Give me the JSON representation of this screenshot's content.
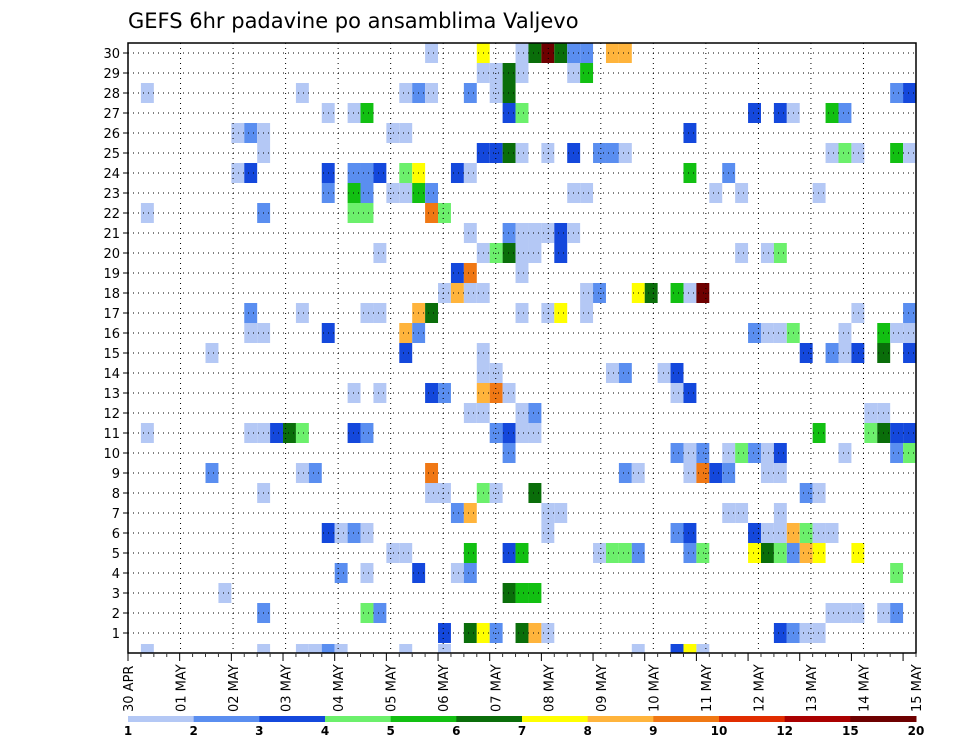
{
  "chart_data": {
    "type": "heatmap",
    "title": "GEFS 6hr padavine po ansamblima Valjevo",
    "xlabel": "",
    "ylabel": "",
    "x_tick_labels": [
      "30 APR",
      "01 MAY",
      "02 MAY",
      "03 MAY",
      "04 MAY",
      "05 MAY",
      "06 MAY",
      "07 MAY",
      "08 MAY",
      "09 MAY",
      "10 MAY",
      "11 MAY",
      "12 MAY",
      "13 MAY",
      "14 MAY",
      "15 MAY"
    ],
    "xlim_steps": [
      0,
      61
    ],
    "steps_per_day": 4,
    "members": [
      1,
      2,
      3,
      4,
      5,
      6,
      7,
      8,
      9,
      10,
      11,
      12,
      13,
      14,
      15,
      16,
      17,
      18,
      19,
      20,
      21,
      22,
      23,
      24,
      25,
      26,
      27,
      28,
      29,
      30
    ],
    "grid": true,
    "legend_placement": "bottom",
    "levels": [
      "1",
      "2",
      "3",
      "4",
      "5",
      "6",
      "7",
      "8",
      "9",
      "10",
      "12",
      "15",
      "20"
    ],
    "level_colors": [
      "#b4c8f5",
      "#5a8ef0",
      "#1448dc",
      "#6cf06c",
      "#12c012",
      "#0a6e0a",
      "#ffff00",
      "#ffb43c",
      "#f07814",
      "#e12d00",
      "#aa0000",
      "#6e0000"
    ],
    "cells": [
      [
        1,
        24,
        3
      ],
      [
        1,
        26,
        6
      ],
      [
        1,
        27,
        7
      ],
      [
        1,
        28,
        2
      ],
      [
        1,
        30,
        6
      ],
      [
        1,
        31,
        8
      ],
      [
        1,
        32,
        1
      ],
      [
        1,
        50,
        3
      ],
      [
        1,
        51,
        2
      ],
      [
        1,
        52,
        1
      ],
      [
        1,
        53,
        1
      ],
      [
        2,
        10,
        2
      ],
      [
        2,
        18,
        4
      ],
      [
        2,
        19,
        2
      ],
      [
        2,
        54,
        1
      ],
      [
        2,
        55,
        1
      ],
      [
        2,
        56,
        1
      ],
      [
        2,
        58,
        1
      ],
      [
        2,
        59,
        2
      ],
      [
        3,
        7,
        1
      ],
      [
        3,
        29,
        6
      ],
      [
        3,
        30,
        5
      ],
      [
        3,
        31,
        5
      ],
      [
        4,
        16,
        2
      ],
      [
        4,
        18,
        1
      ],
      [
        4,
        22,
        3
      ],
      [
        4,
        25,
        1
      ],
      [
        4,
        26,
        2
      ],
      [
        4,
        59,
        4
      ],
      [
        5,
        20,
        1
      ],
      [
        5,
        21,
        1
      ],
      [
        5,
        26,
        5
      ],
      [
        5,
        29,
        3
      ],
      [
        5,
        30,
        5
      ],
      [
        5,
        36,
        1
      ],
      [
        5,
        37,
        4
      ],
      [
        5,
        38,
        4
      ],
      [
        5,
        39,
        2
      ],
      [
        5,
        43,
        2
      ],
      [
        5,
        44,
        4
      ],
      [
        5,
        48,
        7
      ],
      [
        5,
        49,
        6
      ],
      [
        5,
        50,
        4
      ],
      [
        5,
        51,
        2
      ],
      [
        5,
        52,
        8
      ],
      [
        5,
        53,
        7
      ],
      [
        5,
        56,
        7
      ],
      [
        6,
        15,
        3
      ],
      [
        6,
        16,
        1
      ],
      [
        6,
        17,
        2
      ],
      [
        6,
        18,
        1
      ],
      [
        6,
        32,
        1
      ],
      [
        6,
        42,
        2
      ],
      [
        6,
        43,
        3
      ],
      [
        6,
        48,
        3
      ],
      [
        6,
        49,
        1
      ],
      [
        6,
        50,
        1
      ],
      [
        6,
        51,
        8
      ],
      [
        6,
        52,
        4
      ],
      [
        6,
        53,
        1
      ],
      [
        6,
        54,
        1
      ],
      [
        7,
        25,
        2
      ],
      [
        7,
        26,
        8
      ],
      [
        7,
        32,
        1
      ],
      [
        7,
        33,
        1
      ],
      [
        7,
        46,
        1
      ],
      [
        7,
        47,
        1
      ],
      [
        7,
        50,
        1
      ],
      [
        8,
        10,
        1
      ],
      [
        8,
        23,
        1
      ],
      [
        8,
        24,
        1
      ],
      [
        8,
        27,
        4
      ],
      [
        8,
        28,
        1
      ],
      [
        8,
        31,
        6
      ],
      [
        8,
        52,
        2
      ],
      [
        8,
        53,
        1
      ],
      [
        9,
        6,
        2
      ],
      [
        9,
        13,
        1
      ],
      [
        9,
        14,
        2
      ],
      [
        9,
        23,
        9
      ],
      [
        9,
        38,
        2
      ],
      [
        9,
        39,
        1
      ],
      [
        9,
        43,
        1
      ],
      [
        9,
        44,
        9
      ],
      [
        9,
        45,
        3
      ],
      [
        9,
        46,
        2
      ],
      [
        9,
        49,
        1
      ],
      [
        9,
        50,
        1
      ],
      [
        10,
        29,
        2
      ],
      [
        10,
        42,
        2
      ],
      [
        10,
        43,
        1
      ],
      [
        10,
        44,
        2
      ],
      [
        10,
        46,
        1
      ],
      [
        10,
        47,
        4
      ],
      [
        10,
        48,
        2
      ],
      [
        10,
        49,
        1
      ],
      [
        10,
        50,
        3
      ],
      [
        10,
        55,
        1
      ],
      [
        10,
        59,
        2
      ],
      [
        10,
        60,
        4
      ],
      [
        11,
        1,
        1
      ],
      [
        11,
        9,
        1
      ],
      [
        11,
        10,
        1
      ],
      [
        11,
        11,
        3
      ],
      [
        11,
        12,
        6
      ],
      [
        11,
        13,
        4
      ],
      [
        11,
        17,
        3
      ],
      [
        11,
        18,
        2
      ],
      [
        11,
        28,
        2
      ],
      [
        11,
        29,
        3
      ],
      [
        11,
        30,
        1
      ],
      [
        11,
        31,
        1
      ],
      [
        11,
        53,
        5
      ],
      [
        11,
        57,
        4
      ],
      [
        11,
        58,
        6
      ],
      [
        11,
        59,
        3
      ],
      [
        11,
        60,
        3
      ],
      [
        12,
        26,
        1
      ],
      [
        12,
        27,
        1
      ],
      [
        12,
        30,
        1
      ],
      [
        12,
        31,
        2
      ],
      [
        12,
        57,
        1
      ],
      [
        12,
        58,
        1
      ],
      [
        13,
        17,
        1
      ],
      [
        13,
        19,
        1
      ],
      [
        13,
        23,
        3
      ],
      [
        13,
        24,
        2
      ],
      [
        13,
        27,
        8
      ],
      [
        13,
        28,
        9
      ],
      [
        13,
        29,
        1
      ],
      [
        13,
        42,
        1
      ],
      [
        13,
        43,
        3
      ],
      [
        14,
        27,
        1
      ],
      [
        14,
        28,
        1
      ],
      [
        14,
        37,
        1
      ],
      [
        14,
        38,
        2
      ],
      [
        14,
        41,
        1
      ],
      [
        14,
        42,
        3
      ],
      [
        15,
        6,
        1
      ],
      [
        15,
        21,
        3
      ],
      [
        15,
        27,
        1
      ],
      [
        15,
        52,
        3
      ],
      [
        15,
        54,
        2
      ],
      [
        15,
        55,
        1
      ],
      [
        15,
        56,
        3
      ],
      [
        15,
        58,
        6
      ],
      [
        15,
        60,
        3
      ],
      [
        16,
        9,
        1
      ],
      [
        16,
        10,
        1
      ],
      [
        16,
        15,
        3
      ],
      [
        16,
        21,
        8
      ],
      [
        16,
        22,
        2
      ],
      [
        16,
        48,
        2
      ],
      [
        16,
        49,
        1
      ],
      [
        16,
        50,
        1
      ],
      [
        16,
        51,
        4
      ],
      [
        16,
        55,
        1
      ],
      [
        16,
        58,
        5
      ],
      [
        16,
        59,
        1
      ],
      [
        16,
        60,
        1
      ],
      [
        17,
        9,
        2
      ],
      [
        17,
        13,
        1
      ],
      [
        17,
        18,
        1
      ],
      [
        17,
        19,
        1
      ],
      [
        17,
        22,
        8
      ],
      [
        17,
        23,
        6
      ],
      [
        17,
        30,
        1
      ],
      [
        17,
        32,
        1
      ],
      [
        17,
        33,
        7
      ],
      [
        17,
        35,
        1
      ],
      [
        17,
        56,
        1
      ],
      [
        17,
        60,
        2
      ],
      [
        18,
        24,
        1
      ],
      [
        18,
        25,
        8
      ],
      [
        18,
        26,
        1
      ],
      [
        18,
        27,
        1
      ],
      [
        18,
        35,
        1
      ],
      [
        18,
        36,
        2
      ],
      [
        18,
        39,
        7
      ],
      [
        18,
        40,
        6
      ],
      [
        18,
        42,
        5
      ],
      [
        18,
        43,
        1
      ],
      [
        18,
        44,
        12
      ],
      [
        19,
        25,
        3
      ],
      [
        19,
        26,
        9
      ],
      [
        19,
        30,
        1
      ],
      [
        20,
        19,
        1
      ],
      [
        20,
        27,
        1
      ],
      [
        20,
        28,
        4
      ],
      [
        20,
        29,
        6
      ],
      [
        20,
        30,
        1
      ],
      [
        20,
        31,
        1
      ],
      [
        20,
        33,
        3
      ],
      [
        20,
        47,
        1
      ],
      [
        20,
        49,
        1
      ],
      [
        20,
        50,
        4
      ],
      [
        21,
        26,
        1
      ],
      [
        21,
        29,
        2
      ],
      [
        21,
        30,
        1
      ],
      [
        21,
        31,
        1
      ],
      [
        21,
        32,
        1
      ],
      [
        21,
        33,
        3
      ],
      [
        21,
        34,
        1
      ],
      [
        22,
        1,
        1
      ],
      [
        22,
        10,
        2
      ],
      [
        22,
        17,
        4
      ],
      [
        22,
        18,
        4
      ],
      [
        22,
        23,
        9
      ],
      [
        22,
        24,
        4
      ],
      [
        23,
        15,
        2
      ],
      [
        23,
        17,
        5
      ],
      [
        23,
        18,
        2
      ],
      [
        23,
        20,
        1
      ],
      [
        23,
        21,
        1
      ],
      [
        23,
        22,
        5
      ],
      [
        23,
        23,
        2
      ],
      [
        23,
        34,
        1
      ],
      [
        23,
        35,
        1
      ],
      [
        23,
        45,
        1
      ],
      [
        23,
        47,
        1
      ],
      [
        23,
        53,
        1
      ],
      [
        24,
        8,
        1
      ],
      [
        24,
        9,
        3
      ],
      [
        24,
        15,
        3
      ],
      [
        24,
        17,
        2
      ],
      [
        24,
        18,
        2
      ],
      [
        24,
        19,
        3
      ],
      [
        24,
        21,
        4
      ],
      [
        24,
        22,
        7
      ],
      [
        24,
        25,
        3
      ],
      [
        24,
        26,
        1
      ],
      [
        24,
        43,
        5
      ],
      [
        24,
        46,
        2
      ],
      [
        25,
        10,
        1
      ],
      [
        25,
        27,
        3
      ],
      [
        25,
        28,
        3
      ],
      [
        25,
        29,
        6
      ],
      [
        25,
        30,
        1
      ],
      [
        25,
        32,
        1
      ],
      [
        25,
        34,
        3
      ],
      [
        25,
        36,
        2
      ],
      [
        25,
        37,
        2
      ],
      [
        25,
        38,
        1
      ],
      [
        25,
        54,
        1
      ],
      [
        25,
        55,
        4
      ],
      [
        25,
        56,
        1
      ],
      [
        25,
        59,
        5
      ],
      [
        25,
        60,
        1
      ],
      [
        26,
        8,
        1
      ],
      [
        26,
        9,
        2
      ],
      [
        26,
        10,
        1
      ],
      [
        26,
        20,
        1
      ],
      [
        26,
        21,
        1
      ],
      [
        26,
        43,
        3
      ],
      [
        27,
        15,
        1
      ],
      [
        27,
        17,
        1
      ],
      [
        27,
        18,
        5
      ],
      [
        27,
        29,
        3
      ],
      [
        27,
        30,
        4
      ],
      [
        27,
        48,
        3
      ],
      [
        27,
        50,
        3
      ],
      [
        27,
        51,
        1
      ],
      [
        27,
        54,
        5
      ],
      [
        27,
        55,
        2
      ],
      [
        28,
        1,
        1
      ],
      [
        28,
        13,
        1
      ],
      [
        28,
        21,
        1
      ],
      [
        28,
        22,
        2
      ],
      [
        28,
        23,
        1
      ],
      [
        28,
        26,
        2
      ],
      [
        28,
        28,
        1
      ],
      [
        28,
        29,
        6
      ],
      [
        28,
        59,
        2
      ],
      [
        28,
        60,
        3
      ],
      [
        29,
        27,
        1
      ],
      [
        29,
        28,
        1
      ],
      [
        29,
        29,
        6
      ],
      [
        29,
        30,
        1
      ],
      [
        29,
        34,
        1
      ],
      [
        29,
        35,
        5
      ],
      [
        30,
        23,
        1
      ],
      [
        30,
        27,
        7
      ],
      [
        30,
        30,
        1
      ],
      [
        30,
        31,
        6
      ],
      [
        30,
        32,
        12
      ],
      [
        30,
        33,
        6
      ],
      [
        30,
        34,
        2
      ],
      [
        30,
        35,
        2
      ],
      [
        30,
        37,
        8
      ],
      [
        30,
        38,
        8
      ]
    ],
    "extra_row_cells": [
      [
        1,
        1
      ],
      [
        10,
        1
      ],
      [
        13,
        1
      ],
      [
        14,
        1
      ],
      [
        15,
        2
      ],
      [
        16,
        1
      ],
      [
        21,
        1
      ],
      [
        24,
        1
      ],
      [
        39,
        1
      ],
      [
        42,
        3
      ],
      [
        43,
        7
      ],
      [
        44,
        1
      ]
    ]
  }
}
